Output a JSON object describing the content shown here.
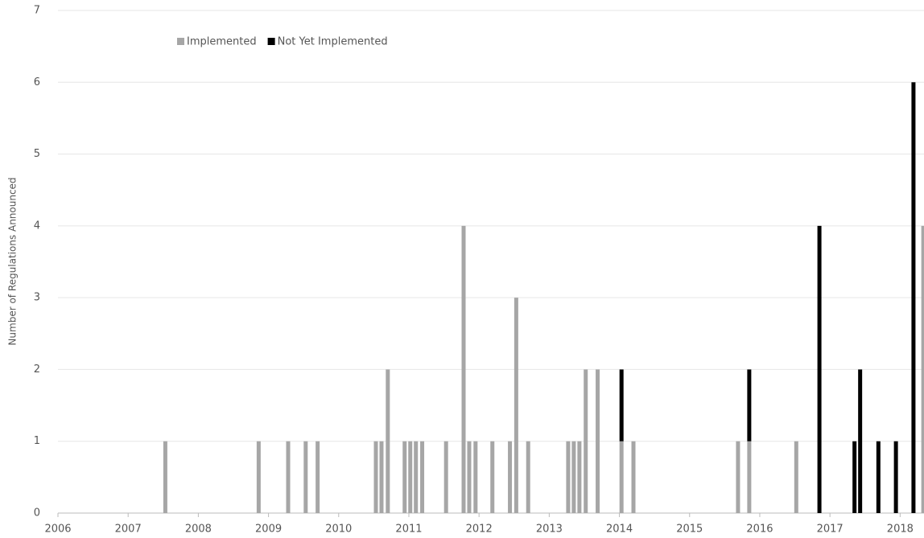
{
  "chart_data": {
    "type": "bar",
    "stacked": true,
    "y_label": "Number of Regulations Announced",
    "x": [
      2007.53,
      2008.86,
      2009.28,
      2009.53,
      2009.7,
      2010.53,
      2010.61,
      2010.7,
      2010.94,
      2011.02,
      2011.1,
      2011.19,
      2011.53,
      2011.78,
      2011.86,
      2011.95,
      2012.19,
      2012.44,
      2012.53,
      2012.7,
      2013.27,
      2013.35,
      2013.43,
      2013.52,
      2013.69,
      2014.03,
      2014.2,
      2015.69,
      2015.85,
      2016.52,
      2016.85,
      2017.35,
      2017.43,
      2017.69,
      2017.94,
      2018.19,
      2018.33
    ],
    "series": [
      {
        "name": "Implemented",
        "color": "#a6a6a6",
        "values": [
          1,
          1,
          1,
          1,
          1,
          1,
          1,
          2,
          1,
          1,
          1,
          1,
          1,
          4,
          1,
          1,
          1,
          1,
          3,
          1,
          1,
          1,
          1,
          2,
          2,
          1,
          1,
          1,
          1,
          1,
          0,
          0,
          0,
          0,
          0,
          0,
          4
        ]
      },
      {
        "name": "Not Yet Implemented",
        "color": "#000000",
        "values": [
          0,
          0,
          0,
          0,
          0,
          0,
          0,
          0,
          0,
          0,
          0,
          0,
          0,
          0,
          0,
          0,
          0,
          0,
          0,
          0,
          0,
          0,
          0,
          0,
          0,
          1,
          0,
          0,
          1,
          0,
          4,
          1,
          2,
          1,
          1,
          6,
          0
        ]
      }
    ],
    "xlim": [
      2006,
      2018.34
    ],
    "xticks": [
      2006,
      2007,
      2008,
      2009,
      2010,
      2011,
      2012,
      2013,
      2014,
      2015,
      2016,
      2017,
      2018
    ],
    "ylim": [
      0,
      7
    ],
    "yticks": [
      0,
      1,
      2,
      3,
      4,
      5,
      6,
      7
    ],
    "grid": true,
    "legend": "top-left"
  }
}
